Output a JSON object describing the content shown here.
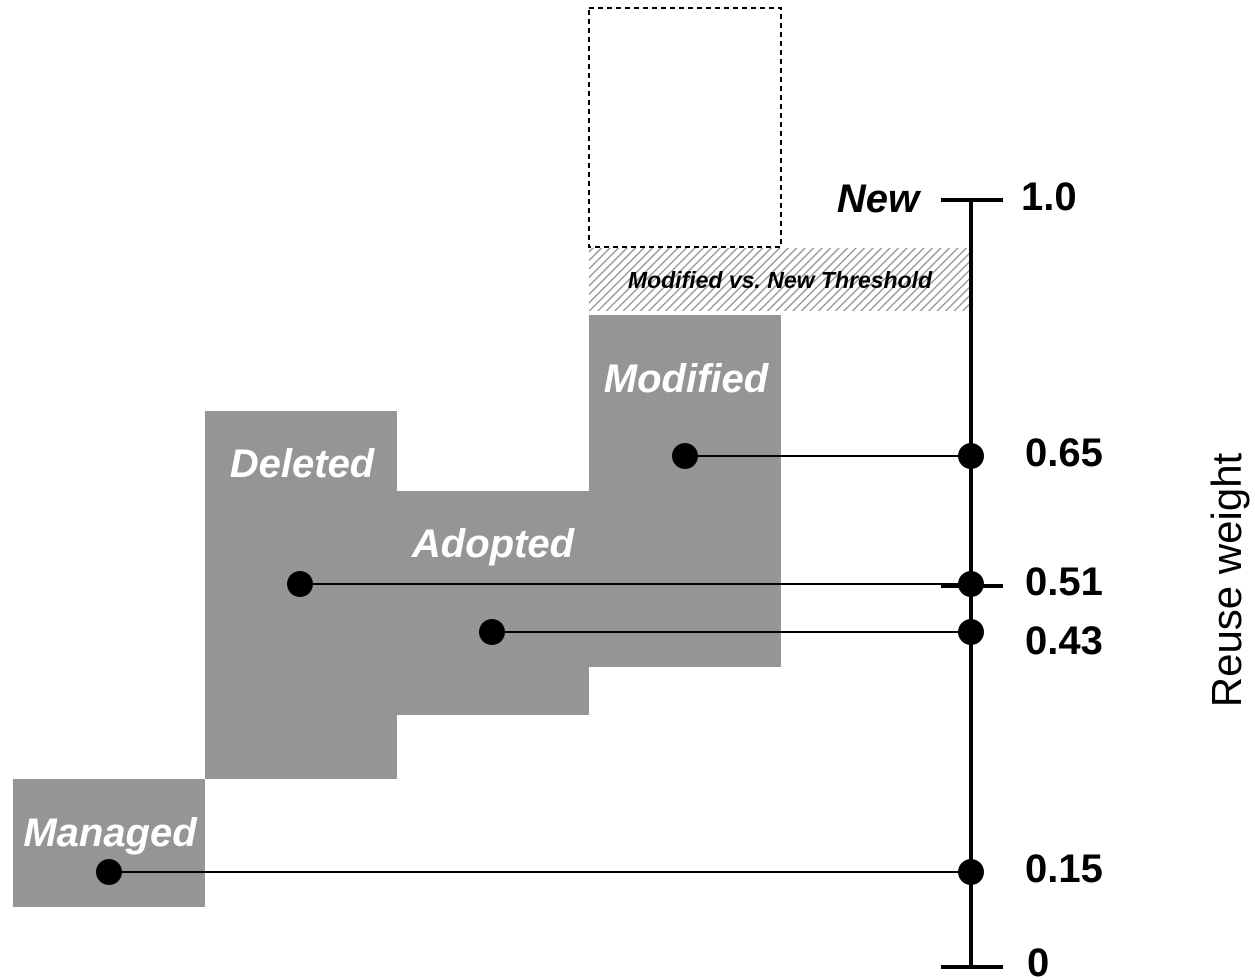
{
  "diagram": {
    "axis_title": "Reuse weight",
    "axis_top_label": "New",
    "threshold_label": "Modified vs. New Threshold",
    "axis_min_label": "0",
    "axis_max_label": "1.0",
    "colors": {
      "box_fill": "#959595",
      "line": "#000000",
      "text_on_box": "#ffffff"
    },
    "categories": [
      {
        "id": "modified",
        "label": "Modified",
        "weight": 0.65,
        "weight_label": "0.65"
      },
      {
        "id": "deleted",
        "label": "Deleted",
        "weight": 0.51,
        "weight_label": "0.51"
      },
      {
        "id": "adopted",
        "label": "Adopted",
        "weight": 0.43,
        "weight_label": "0.43"
      },
      {
        "id": "managed",
        "label": "Managed",
        "weight": 0.15,
        "weight_label": "0.15"
      }
    ]
  }
}
